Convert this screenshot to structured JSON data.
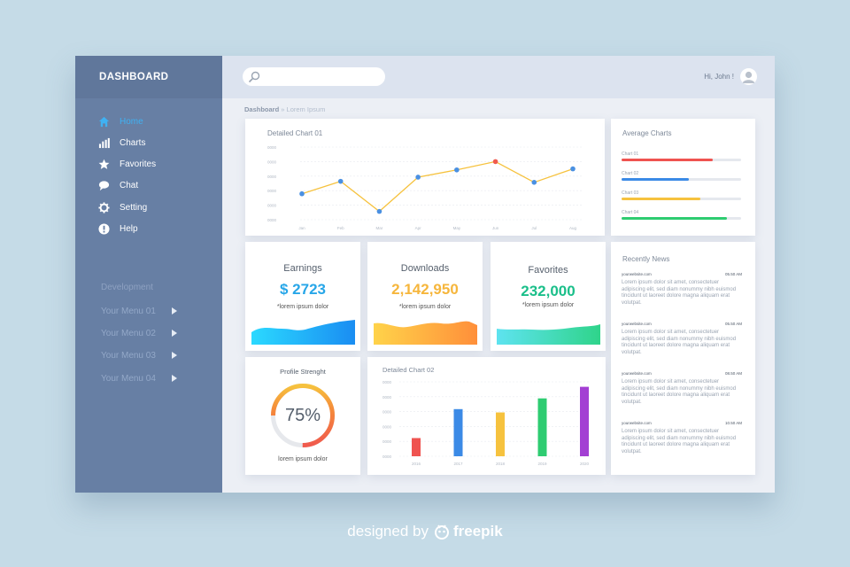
{
  "sidebar": {
    "brand": "DASHBOARD",
    "nav": [
      {
        "label": "Home",
        "icon": "home-icon",
        "active": true
      },
      {
        "label": "Charts",
        "icon": "bar-chart-icon"
      },
      {
        "label": "Favorites",
        "icon": "star-icon"
      },
      {
        "label": "Chat",
        "icon": "chat-bubble-icon"
      },
      {
        "label": "Setting",
        "icon": "gear-icon"
      },
      {
        "label": "Help",
        "icon": "info-icon"
      }
    ],
    "dev_title": "Development",
    "menus": [
      "Your Menu 01",
      "Your Menu 02",
      "Your Menu 03",
      "Your Menu 04"
    ]
  },
  "topbar": {
    "search_placeholder": "",
    "greeting": "Hi, John !"
  },
  "breadcrumb": {
    "root": "Dashboard",
    "sep": "»",
    "current": "Lorem Ipsum"
  },
  "detailed_chart_1": {
    "title": "Detailed Chart 01",
    "chart_data": {
      "type": "line",
      "categories": [
        "Jan",
        "Feb",
        "Mar",
        "Apr",
        "May",
        "Jun",
        "Jul",
        "Aug"
      ],
      "values": [
        250,
        370,
        80,
        410,
        480,
        560,
        360,
        490
      ],
      "ylim": [
        0,
        700
      ],
      "yticks": [
        "0000",
        "0000",
        "0000",
        "0000",
        "0000",
        "0000"
      ],
      "color": "#f6c23e",
      "point_colors": [
        "#4a90e2",
        "#4a90e2",
        "#4a90e2",
        "#4a90e2",
        "#4a90e2",
        "#f05a4d",
        "#4a90e2",
        "#4a90e2"
      ],
      "grid": true
    }
  },
  "average_charts": {
    "title": "Average Charts",
    "chart_data": {
      "type": "bar",
      "categories": [
        "Chart 01",
        "Chart 02",
        "Chart 03",
        "Chart 04"
      ],
      "values": [
        76,
        56,
        66,
        88
      ],
      "max": 100,
      "colors": [
        "#ef5350",
        "#3b8ae6",
        "#f6c23e",
        "#2ecc71"
      ]
    }
  },
  "stats": [
    {
      "title": "Earnings",
      "value": "$ 2723",
      "sub": "*lorem ipsum dolor",
      "color": "#27a6e8",
      "wave_from": "#2bd9ff",
      "wave_to": "#1a8df2"
    },
    {
      "title": "Downloads",
      "value": "2,142,950",
      "sub": "*lorem ipsum dolor",
      "color": "#f6b63c",
      "wave_from": "#ffd34a",
      "wave_to": "#ff8f3a"
    },
    {
      "title": "Favorites",
      "value": "232,000",
      "sub": "*lorem ipsum dolor",
      "color": "#1bbf8a",
      "wave_from": "#5ee3f0",
      "wave_to": "#2fd48a"
    }
  ],
  "profile": {
    "title": "Profile Strenght",
    "percent_label": "75%",
    "progress": 0.75,
    "sub": "lorem ipsum dolor"
  },
  "detailed_chart_2": {
    "title": "Detailed Chart 02",
    "chart_data": {
      "type": "bar",
      "categories": [
        "2016",
        "2017",
        "2018",
        "2019",
        "2020"
      ],
      "values": [
        220,
        570,
        530,
        700,
        840
      ],
      "ylim": [
        0,
        900
      ],
      "yticks": [
        "0000",
        "0000",
        "0000",
        "0000",
        "0000",
        "0000"
      ],
      "colors": [
        "#ef5350",
        "#3b8ae6",
        "#f6c23e",
        "#2ecc71",
        "#a33fd3"
      ],
      "grid": true
    }
  },
  "news": {
    "title": "Recently News",
    "items": [
      {
        "site": "yourwebsite.com",
        "time": "05.50 AM",
        "text": "Lorem ipsum dolor sit amet, consectetuer adipiscing elit, sed diam nonummy nibh euismod tincidunt ut laoreet dolore magna aliquam erat volutpat."
      },
      {
        "site": "yourwebsite.com",
        "time": "05.50 AM",
        "text": "Lorem ipsum dolor sit amet, consectetuer adipiscing elit, sed diam nonummy nibh euismod tincidunt ut laoreet dolore magna aliquam erat volutpat."
      },
      {
        "site": "yourwebsite.com",
        "time": "08.50 AM",
        "text": "Lorem ipsum dolor sit amet, consectetuer adipiscing elit, sed diam nonummy nibh euismod tincidunt ut laoreet dolore magna aliquam erat volutpat."
      },
      {
        "site": "yourwebsite.com",
        "time": "10.50 AM",
        "text": "Lorem ipsum dolor sit amet, consectetuer adipiscing elit, sed diam nonummy nibh euismod tincidunt ut laoreet dolore magna aliquam erat volutpat."
      }
    ]
  },
  "footer": {
    "prefix": "designed by",
    "brand": "freepik"
  }
}
